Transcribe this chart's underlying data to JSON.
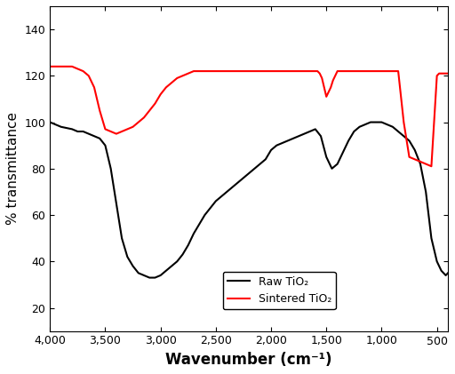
{
  "title": "",
  "xlabel": "Wavenumber (cm⁻¹)",
  "ylabel": "% transmittance",
  "xlim": [
    4000,
    400
  ],
  "ylim": [
    10,
    150
  ],
  "yticks": [
    20,
    40,
    60,
    80,
    100,
    120,
    140
  ],
  "xticks": [
    4000,
    3500,
    3000,
    2500,
    2000,
    1500,
    1000,
    500
  ],
  "legend_labels": [
    "Raw TiO₂",
    "Sintered TiO₂"
  ],
  "legend_colors": [
    "black",
    "red"
  ],
  "raw_x": [
    4000,
    3900,
    3800,
    3750,
    3700,
    3650,
    3600,
    3550,
    3500,
    3450,
    3400,
    3350,
    3300,
    3250,
    3200,
    3150,
    3100,
    3050,
    3000,
    2950,
    2900,
    2850,
    2800,
    2750,
    2700,
    2650,
    2600,
    2550,
    2500,
    2450,
    2400,
    2350,
    2300,
    2250,
    2200,
    2150,
    2100,
    2050,
    2000,
    1950,
    1900,
    1850,
    1800,
    1750,
    1700,
    1650,
    1600,
    1550,
    1500,
    1450,
    1400,
    1350,
    1300,
    1250,
    1200,
    1150,
    1100,
    1050,
    1000,
    950,
    900,
    850,
    800,
    750,
    700,
    650,
    600,
    550,
    500,
    480,
    460,
    440,
    420,
    400
  ],
  "raw_y": [
    100,
    98,
    97,
    96,
    96,
    95,
    94,
    93,
    90,
    80,
    65,
    50,
    42,
    38,
    35,
    34,
    33,
    33,
    34,
    36,
    38,
    40,
    43,
    47,
    52,
    56,
    60,
    63,
    66,
    68,
    70,
    72,
    74,
    76,
    78,
    80,
    82,
    84,
    88,
    90,
    91,
    92,
    93,
    94,
    95,
    96,
    97,
    94,
    85,
    80,
    82,
    87,
    92,
    96,
    98,
    99,
    100,
    100,
    100,
    99,
    98,
    96,
    94,
    92,
    88,
    82,
    70,
    50,
    40,
    38,
    36,
    35,
    34,
    35
  ],
  "sintered_x": [
    4000,
    3900,
    3800,
    3750,
    3700,
    3650,
    3600,
    3550,
    3500,
    3450,
    3400,
    3350,
    3300,
    3250,
    3200,
    3150,
    3100,
    3050,
    3000,
    2950,
    2900,
    2850,
    2800,
    2750,
    2700,
    2650,
    2600,
    2550,
    2500,
    2450,
    2400,
    2350,
    2300,
    2250,
    2200,
    2150,
    2100,
    2050,
    2000,
    1950,
    1900,
    1850,
    1800,
    1750,
    1700,
    1650,
    1600,
    1580,
    1560,
    1540,
    1520,
    1500,
    1480,
    1460,
    1440,
    1420,
    1400,
    1350,
    1300,
    1250,
    1200,
    1150,
    1100,
    1050,
    1000,
    950,
    900,
    850,
    800,
    750,
    700,
    650,
    600,
    550,
    500,
    480,
    460,
    440,
    420,
    400
  ],
  "sintered_y": [
    124,
    124,
    124,
    123,
    122,
    120,
    115,
    105,
    97,
    96,
    95,
    96,
    97,
    98,
    100,
    102,
    105,
    108,
    112,
    115,
    117,
    119,
    120,
    121,
    122,
    122,
    122,
    122,
    122,
    122,
    122,
    122,
    122,
    122,
    122,
    122,
    122,
    122,
    122,
    122,
    122,
    122,
    122,
    122,
    122,
    122,
    122,
    122,
    121,
    119,
    115,
    111,
    113,
    115,
    118,
    120,
    122,
    122,
    122,
    122,
    122,
    122,
    122,
    122,
    122,
    122,
    122,
    122,
    100,
    85,
    84,
    83,
    82,
    81,
    120,
    121,
    121,
    121,
    121,
    121
  ]
}
